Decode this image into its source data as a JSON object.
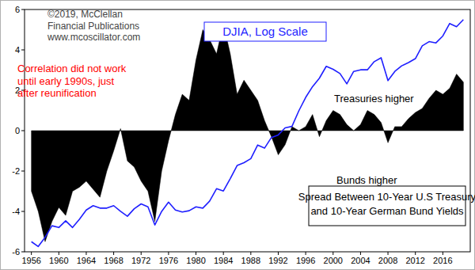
{
  "chart_data": [
    {
      "type": "area",
      "x": [
        1956,
        1957,
        1958,
        1959,
        1960,
        1961,
        1962,
        1963,
        1964,
        1965,
        1966,
        1967,
        1968,
        1969,
        1970,
        1971,
        1972,
        1973,
        1974,
        1975,
        1976,
        1977,
        1978,
        1979,
        1980,
        1981,
        1982,
        1983,
        1984,
        1985,
        1986,
        1987,
        1988,
        1989,
        1990,
        1991,
        1992,
        1993,
        1994,
        1995,
        1996,
        1997,
        1998,
        1999,
        2000,
        2001,
        2002,
        2003,
        2004,
        2005,
        2006,
        2007,
        2008,
        2009,
        2010,
        2011,
        2012,
        2013,
        2014,
        2015,
        2016,
        2017,
        2018,
        2019
      ],
      "values": [
        -3.0,
        -4.0,
        -5.5,
        -4.5,
        -3.8,
        -4.2,
        -3.0,
        -2.8,
        -2.5,
        -2.9,
        -3.3,
        -2.0,
        -1.0,
        0.1,
        -1.5,
        -1.8,
        -2.5,
        -3.0,
        -4.5,
        -2.0,
        -0.5,
        0.8,
        1.8,
        1.5,
        3.5,
        5.0,
        4.5,
        3.8,
        5.3,
        3.8,
        1.8,
        2.5,
        2.0,
        1.5,
        0.5,
        -0.3,
        -1.2,
        -0.7,
        0.2,
        0.0,
        0.2,
        0.8,
        -0.3,
        0.5,
        1.0,
        0.8,
        0.3,
        0.0,
        0.3,
        1.0,
        0.8,
        0.4,
        -0.6,
        0.2,
        0.2,
        0.6,
        0.9,
        1.1,
        1.6,
        2.0,
        1.8,
        2.1,
        2.8,
        2.4
      ],
      "color": "#000000",
      "xlim": [
        1955,
        2020
      ],
      "ylim": [
        -6,
        6
      ],
      "xticks": [
        1956,
        1960,
        1964,
        1968,
        1972,
        1976,
        1980,
        1984,
        1988,
        1992,
        1996,
        2000,
        2004,
        2008,
        2012,
        2016
      ],
      "yticks": [
        -6,
        -4,
        -2,
        0,
        2,
        4,
        6
      ],
      "annotations": [
        [
          "©2019, McClellan",
          "Financial Publications",
          "www.mcoscillator.com"
        ],
        [
          "Correlation did not work",
          "until early 1990s, just",
          "after reunification"
        ],
        [
          "Treasuries higher"
        ],
        [
          "Bunds higher"
        ],
        [
          "Spread Between 10-Year U.S Treasury",
          "and 10-Year German Bund Yields"
        ]
      ]
    },
    {
      "type": "line",
      "title": "DJIA, Log Scale",
      "x": [
        1956,
        1957,
        1958,
        1959,
        1960,
        1961,
        1962,
        1963,
        1964,
        1965,
        1966,
        1967,
        1968,
        1969,
        1970,
        1971,
        1972,
        1973,
        1974,
        1975,
        1976,
        1977,
        1978,
        1979,
        1980,
        1981,
        1982,
        1983,
        1984,
        1985,
        1986,
        1987,
        1988,
        1989,
        1990,
        1991,
        1992,
        1993,
        1994,
        1995,
        1996,
        1997,
        1998,
        1999,
        2000,
        2001,
        2002,
        2003,
        2004,
        2005,
        2006,
        2007,
        2008,
        2009,
        2010,
        2011,
        2012,
        2013,
        2014,
        2015,
        2016,
        2017,
        2018,
        2019
      ],
      "values": [
        480,
        440,
        520,
        640,
        620,
        700,
        620,
        720,
        850,
        920,
        880,
        880,
        920,
        830,
        760,
        870,
        950,
        900,
        650,
        830,
        980,
        850,
        820,
        840,
        900,
        880,
        1000,
        1250,
        1200,
        1500,
        1900,
        2000,
        2150,
        2750,
        2600,
        3150,
        3300,
        3750,
        3850,
        5100,
        6500,
        7900,
        9200,
        11400,
        10800,
        10000,
        8300,
        10400,
        10700,
        10700,
        12400,
        13300,
        8800,
        10400,
        11500,
        12200,
        13100,
        16500,
        17800,
        17400,
        19700,
        24700,
        23300,
        26500
      ],
      "color": "#1f1fff",
      "xlim": [
        1955,
        2020
      ],
      "ylim": [
        400,
        31800
      ],
      "log": "y",
      "tick_labels": false
    }
  ]
}
